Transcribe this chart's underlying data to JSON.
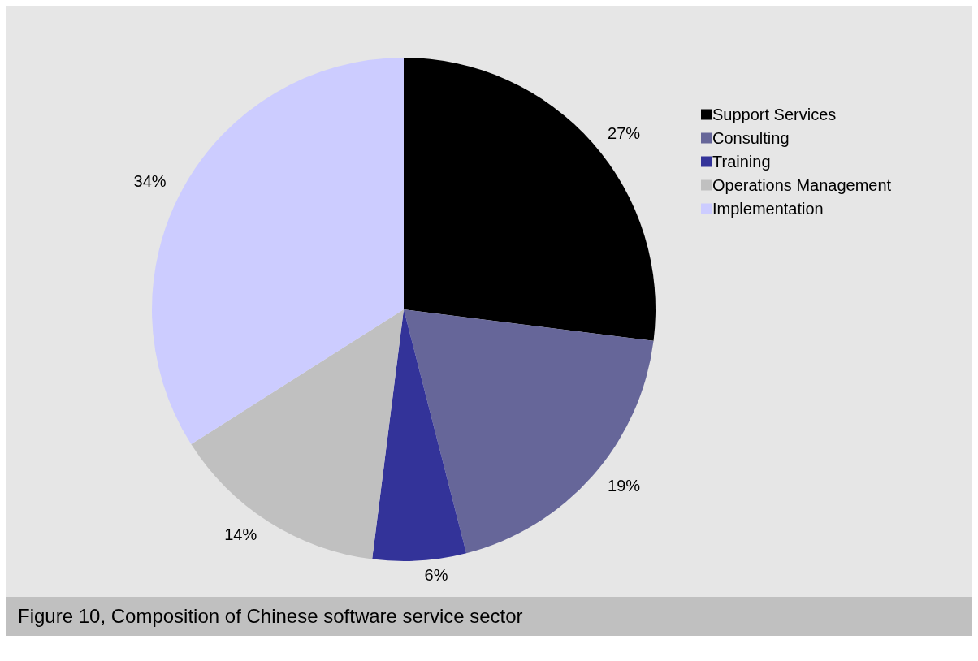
{
  "chart_data": {
    "type": "pie",
    "title": "Figure 10, Composition of Chinese software service sector",
    "categories": [
      "Support Services",
      "Consulting",
      "Training",
      "Operations Management",
      "Implementation"
    ],
    "values": [
      27,
      19,
      6,
      14,
      34
    ],
    "colors": [
      "#000000",
      "#666699",
      "#333399",
      "#c0c0c0",
      "#ccccff"
    ],
    "value_labels": [
      "27%",
      "19%",
      "6%",
      "14%",
      "34%"
    ],
    "legend": "top right"
  }
}
